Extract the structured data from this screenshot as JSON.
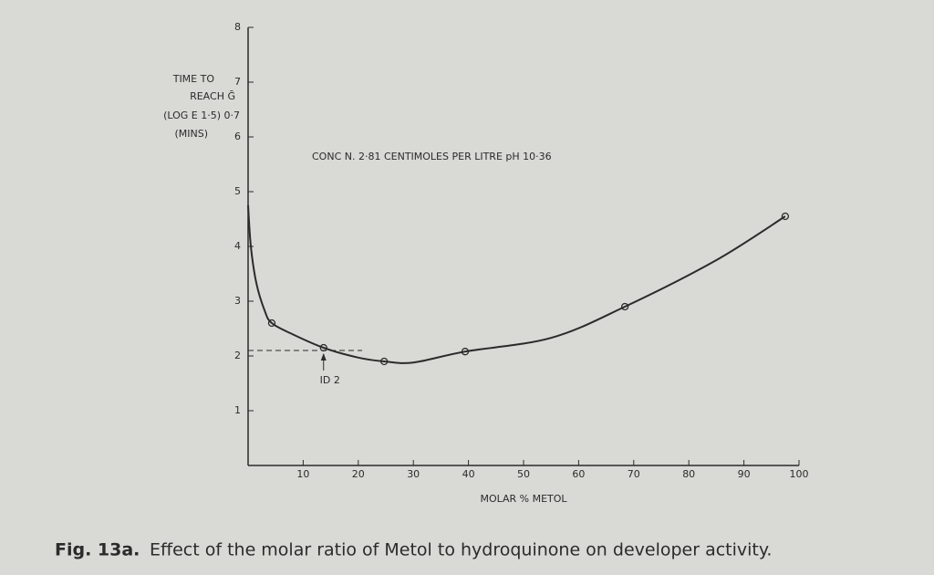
{
  "chart_data": {
    "type": "line",
    "y_label_lines": [
      "TIME TO",
      "REACH Ḡ",
      "(LOG E 1·5) 0·7",
      "(MINS)"
    ],
    "x_label": "MOLAR % METOL",
    "annotation": "CONC N. 2·81 CENTIMOLES PER LITRE pH 10·36",
    "marker": {
      "text": "ID 2",
      "x": 13.7
    },
    "reference": {
      "y": 2.1,
      "x_start": 0,
      "x_end": 20.7
    },
    "series": [
      {
        "color": "#2b2b2b",
        "markers": false,
        "x": [
          0,
          0.5,
          1.5,
          3,
          4.3,
          8,
          13.7,
          20,
          24.7,
          30,
          39.4,
          55,
          68.4,
          85,
          97.5
        ],
        "values": [
          4.75,
          4.0,
          3.33,
          2.83,
          2.6,
          2.4,
          2.15,
          1.97,
          1.9,
          1.88,
          2.08,
          2.33,
          2.9,
          3.75,
          4.55
        ]
      },
      {
        "color": "#2b2b2b",
        "markers": true,
        "x": [
          4.3,
          13.7,
          24.7,
          39.4,
          68.4,
          97.5
        ],
        "values": [
          2.6,
          2.15,
          1.9,
          2.08,
          2.9,
          4.55
        ]
      }
    ],
    "xlim": [
      0,
      100
    ],
    "ylim": [
      0,
      8
    ],
    "xticks": [
      10,
      20,
      30,
      40,
      50,
      60,
      70,
      80,
      90,
      100
    ],
    "yticks": [
      1,
      2,
      3,
      4,
      5,
      6,
      7,
      8
    ],
    "caption_label": "Fig. 13a.",
    "caption": "Effect of the molar ratio of Metol to hydroquinone on developer activity."
  }
}
